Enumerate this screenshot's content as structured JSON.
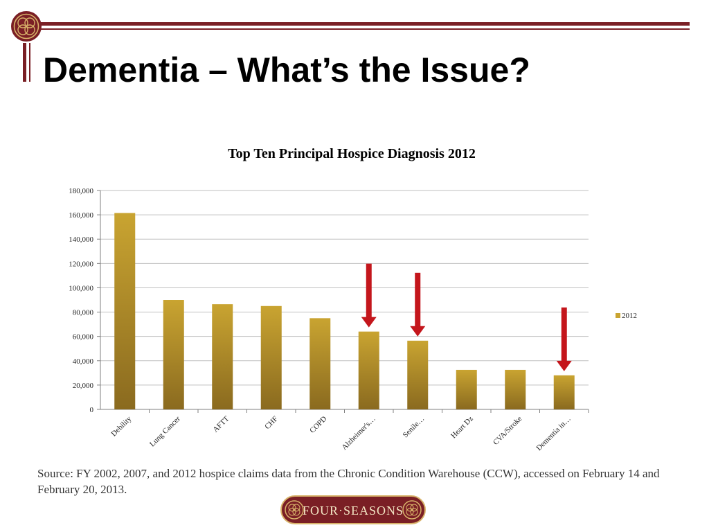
{
  "slide": {
    "title": "Dementia – What’s the Issue?",
    "source_note": "Source: FY 2002, 2007, and 2012 hospice claims data from the Chronic Condition Warehouse (CCW), accessed on February 14 and February 20, 2013.",
    "brand_text": "FOUR·SEASONS"
  },
  "colors": {
    "accent": "#7a1f25",
    "bar_light": "#c9a431",
    "bar_dark": "#8a6a1f",
    "arrow": "#c4161c",
    "gridline": "#bfbfbf"
  },
  "chart_data": {
    "type": "bar",
    "title": "Top Ten Principal Hospice Diagnosis 2012",
    "xlabel": "",
    "ylabel": "",
    "categories": [
      "Debility",
      "Lung Cancer",
      "AFTT",
      "CHF",
      "COPD",
      "Alzheimer's…",
      "Senile…",
      "Heart Dz",
      "CVA/Stroke",
      "Dementia in…"
    ],
    "series": [
      {
        "name": "2012",
        "values": [
          161500,
          90000,
          86500,
          85000,
          75000,
          64000,
          56500,
          32500,
          32500,
          28000
        ]
      }
    ],
    "ylim": [
      0,
      180000
    ],
    "yticks": [
      0,
      20000,
      40000,
      60000,
      80000,
      100000,
      120000,
      140000,
      160000,
      180000
    ],
    "ytick_labels": [
      "0",
      "20,000",
      "40,000",
      "60,000",
      "80,000",
      "100,000",
      "120,000",
      "140,000",
      "160,000",
      "180,000"
    ],
    "grid": true,
    "legend_position": "right",
    "highlighted_categories": [
      "Alzheimer's…",
      "Senile…",
      "Dementia in…"
    ]
  }
}
